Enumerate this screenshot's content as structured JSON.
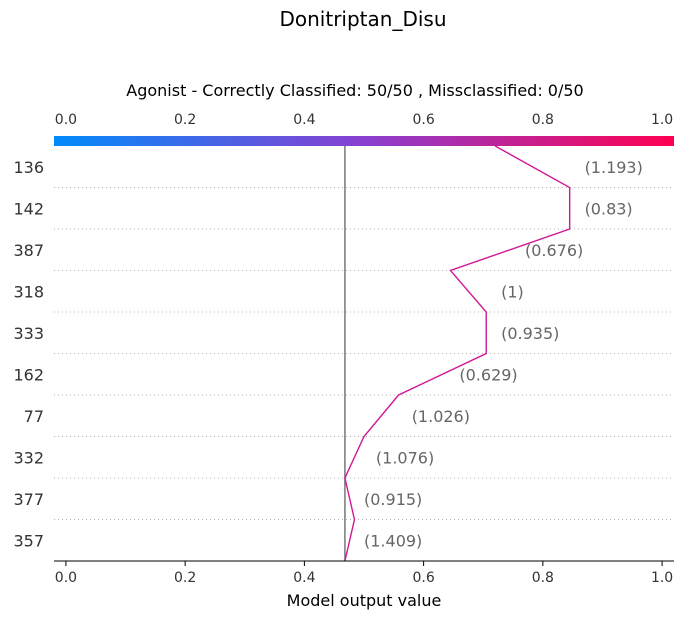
{
  "chart_data": {
    "type": "line",
    "title": "Donitriptan_Disu",
    "subtitle": "Agonist - Correctly Classified: 50/50 , Missclassified: 0/50",
    "xlabel": "Model output value",
    "xlim": [
      -0.02,
      1.02
    ],
    "xticks": [
      "0.0",
      "0.2",
      "0.4",
      "0.6",
      "0.8",
      "1.0"
    ],
    "base_value": 0.468,
    "colorbar": {
      "from": "#008bfb",
      "to": "#ff0051"
    },
    "line_color": "#d11896",
    "start_value": 0.72,
    "features": [
      {
        "label": "136",
        "annotation": "(1.193)",
        "value": 0.845,
        "ann_x": 0.87
      },
      {
        "label": "142",
        "annotation": "(0.83)",
        "value": 0.845,
        "ann_x": 0.87
      },
      {
        "label": "387",
        "annotation": "(0.676)",
        "value": 0.645,
        "ann_x": 0.77
      },
      {
        "label": "318",
        "annotation": "(1)",
        "value": 0.705,
        "ann_x": 0.73
      },
      {
        "label": "333",
        "annotation": "(0.935)",
        "value": 0.705,
        "ann_x": 0.73
      },
      {
        "label": "162",
        "annotation": "(0.629)",
        "value": 0.558,
        "ann_x": 0.66
      },
      {
        "label": "77",
        "annotation": "(1.026)",
        "value": 0.5,
        "ann_x": 0.58
      },
      {
        "label": "332",
        "annotation": "(1.076)",
        "value": 0.468,
        "ann_x": 0.52
      },
      {
        "label": "377",
        "annotation": "(0.915)",
        "value": 0.484,
        "ann_x": 0.5
      },
      {
        "label": "357",
        "annotation": "(1.409)",
        "value": 0.468,
        "ann_x": 0.5
      }
    ]
  }
}
